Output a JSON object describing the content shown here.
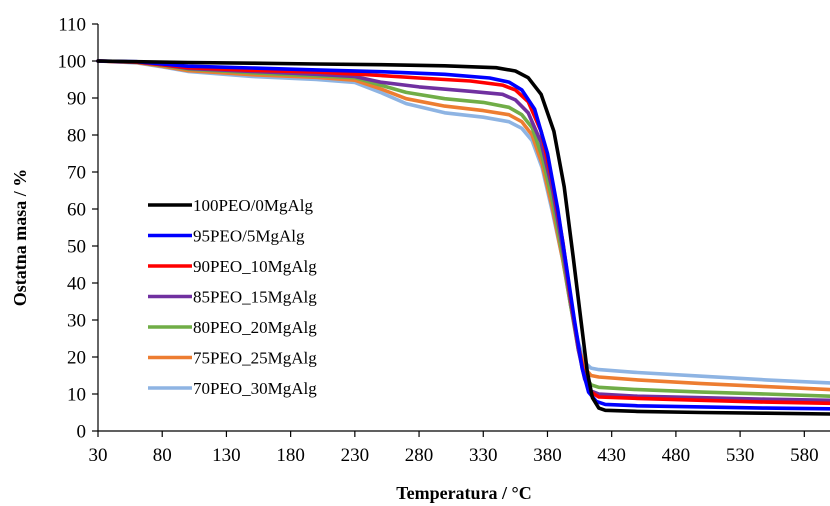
{
  "chart_data": {
    "type": "line",
    "title": "",
    "xlabel": "Temperatura / °C",
    "ylabel": "Ostatna masa / %",
    "xlim": [
      30,
      600
    ],
    "ylim": [
      0,
      110
    ],
    "xticks": [
      30,
      80,
      130,
      180,
      230,
      280,
      330,
      380,
      430,
      480,
      530,
      580
    ],
    "yticks": [
      0,
      10,
      20,
      30,
      40,
      50,
      60,
      70,
      80,
      90,
      100,
      110
    ],
    "grid": false,
    "legend_position": "left",
    "series": [
      {
        "name": "100PEO/0MgAlg",
        "color": "#000000",
        "points": [
          [
            30,
            100
          ],
          [
            60,
            99.8
          ],
          [
            100,
            99.6
          ],
          [
            150,
            99.4
          ],
          [
            200,
            99.2
          ],
          [
            250,
            99
          ],
          [
            300,
            98.7
          ],
          [
            340,
            98.2
          ],
          [
            355,
            97.3
          ],
          [
            365,
            95.5
          ],
          [
            375,
            91
          ],
          [
            385,
            81
          ],
          [
            393,
            66
          ],
          [
            400,
            47
          ],
          [
            406,
            30
          ],
          [
            411,
            16
          ],
          [
            415,
            9
          ],
          [
            420,
            6.2
          ],
          [
            425,
            5.6
          ],
          [
            450,
            5.3
          ],
          [
            500,
            5
          ],
          [
            550,
            4.8
          ],
          [
            600,
            4.6
          ]
        ]
      },
      {
        "name": "95PEO/5MgAlg",
        "color": "#0000ff",
        "points": [
          [
            30,
            100
          ],
          [
            60,
            99.8
          ],
          [
            80,
            99.2
          ],
          [
            100,
            98.6
          ],
          [
            150,
            98.1
          ],
          [
            200,
            97.6
          ],
          [
            250,
            97.1
          ],
          [
            300,
            96.4
          ],
          [
            335,
            95.4
          ],
          [
            350,
            94.3
          ],
          [
            360,
            92.2
          ],
          [
            370,
            87
          ],
          [
            380,
            75
          ],
          [
            388,
            60
          ],
          [
            395,
            44
          ],
          [
            401,
            30
          ],
          [
            407,
            17
          ],
          [
            412,
            10.5
          ],
          [
            418,
            8
          ],
          [
            425,
            7.2
          ],
          [
            450,
            6.8
          ],
          [
            500,
            6.5
          ],
          [
            550,
            6.2
          ],
          [
            600,
            6
          ]
        ]
      },
      {
        "name": "90PEO_10MgAlg",
        "color": "#ff0000",
        "points": [
          [
            30,
            100
          ],
          [
            60,
            99.7
          ],
          [
            80,
            99
          ],
          [
            100,
            98.2
          ],
          [
            150,
            97.5
          ],
          [
            200,
            97
          ],
          [
            240,
            96.3
          ],
          [
            280,
            95.4
          ],
          [
            320,
            94.6
          ],
          [
            345,
            93.5
          ],
          [
            355,
            92.2
          ],
          [
            365,
            89
          ],
          [
            375,
            81
          ],
          [
            384,
            67
          ],
          [
            392,
            51
          ],
          [
            398,
            36
          ],
          [
            404,
            23
          ],
          [
            409,
            14.5
          ],
          [
            414,
            10.5
          ],
          [
            420,
            9.2
          ],
          [
            450,
            8.8
          ],
          [
            500,
            8.3
          ],
          [
            550,
            7.8
          ],
          [
            600,
            7.5
          ]
        ]
      },
      {
        "name": "85PEO_15MgAlg",
        "color": "#7030a0",
        "points": [
          [
            30,
            100
          ],
          [
            60,
            99.7
          ],
          [
            80,
            99
          ],
          [
            100,
            98
          ],
          [
            150,
            97.2
          ],
          [
            200,
            96.4
          ],
          [
            230,
            95.8
          ],
          [
            250,
            94.3
          ],
          [
            280,
            93
          ],
          [
            320,
            91.8
          ],
          [
            345,
            91
          ],
          [
            355,
            89.5
          ],
          [
            365,
            86
          ],
          [
            375,
            78
          ],
          [
            384,
            65
          ],
          [
            392,
            49
          ],
          [
            398,
            35
          ],
          [
            404,
            22
          ],
          [
            409,
            14
          ],
          [
            414,
            10.8
          ],
          [
            420,
            10
          ],
          [
            450,
            9.4
          ],
          [
            500,
            9
          ],
          [
            550,
            8.6
          ],
          [
            600,
            8.3
          ]
        ]
      },
      {
        "name": "80PEO_20MgAlg",
        "color": "#70ad47",
        "points": [
          [
            30,
            100
          ],
          [
            60,
            99.7
          ],
          [
            80,
            98.8
          ],
          [
            100,
            97.8
          ],
          [
            150,
            96.8
          ],
          [
            200,
            96
          ],
          [
            230,
            95.5
          ],
          [
            250,
            93.5
          ],
          [
            270,
            91.5
          ],
          [
            300,
            89.8
          ],
          [
            330,
            88.8
          ],
          [
            350,
            87.5
          ],
          [
            360,
            85.5
          ],
          [
            368,
            82
          ],
          [
            376,
            74
          ],
          [
            384,
            62
          ],
          [
            392,
            47
          ],
          [
            398,
            34
          ],
          [
            404,
            22
          ],
          [
            409,
            15
          ],
          [
            414,
            12.5
          ],
          [
            420,
            11.8
          ],
          [
            450,
            11.2
          ],
          [
            500,
            10.5
          ],
          [
            550,
            10
          ],
          [
            600,
            9.4
          ]
        ]
      },
      {
        "name": "75PEO_25MgAlg",
        "color": "#ed7d31",
        "points": [
          [
            30,
            100
          ],
          [
            60,
            99.6
          ],
          [
            80,
            98.6
          ],
          [
            100,
            97.4
          ],
          [
            150,
            96.3
          ],
          [
            200,
            95.6
          ],
          [
            230,
            94.8
          ],
          [
            250,
            92.5
          ],
          [
            270,
            89.8
          ],
          [
            300,
            87.8
          ],
          [
            330,
            86.6
          ],
          [
            350,
            85.5
          ],
          [
            360,
            83.6
          ],
          [
            368,
            80
          ],
          [
            376,
            72
          ],
          [
            384,
            60
          ],
          [
            392,
            46
          ],
          [
            398,
            34
          ],
          [
            404,
            23
          ],
          [
            409,
            17
          ],
          [
            414,
            15
          ],
          [
            420,
            14.6
          ],
          [
            450,
            13.8
          ],
          [
            500,
            12.8
          ],
          [
            550,
            12
          ],
          [
            600,
            11.2
          ]
        ]
      },
      {
        "name": "70PEO_30MgAlg",
        "color": "#8eb4e3",
        "points": [
          [
            30,
            100
          ],
          [
            60,
            99.5
          ],
          [
            80,
            98.4
          ],
          [
            100,
            97.2
          ],
          [
            150,
            95.8
          ],
          [
            200,
            95
          ],
          [
            230,
            94.2
          ],
          [
            250,
            91.5
          ],
          [
            270,
            88.5
          ],
          [
            300,
            86
          ],
          [
            330,
            84.8
          ],
          [
            350,
            83.6
          ],
          [
            360,
            81.8
          ],
          [
            368,
            78.5
          ],
          [
            376,
            71
          ],
          [
            384,
            59
          ],
          [
            392,
            46
          ],
          [
            398,
            34
          ],
          [
            404,
            24
          ],
          [
            409,
            18.5
          ],
          [
            414,
            17
          ],
          [
            420,
            16.6
          ],
          [
            450,
            15.8
          ],
          [
            500,
            14.8
          ],
          [
            550,
            13.8
          ],
          [
            600,
            13
          ]
        ]
      }
    ]
  }
}
